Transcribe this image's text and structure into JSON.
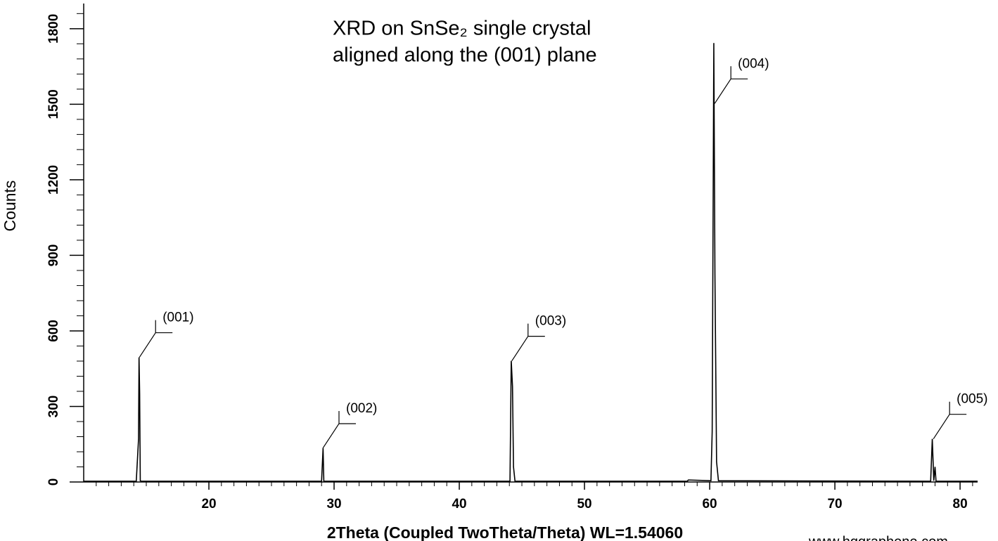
{
  "chart_data": {
    "type": "line",
    "title": [
      "XRD on SnSe₂ single crystal",
      "aligned along the (001) plane"
    ],
    "x_label": "2Theta (Coupled TwoTheta/Theta) WL=1.54060",
    "y_label": "Counts",
    "watermark": "www.hqgraphene.com",
    "color": "#000000",
    "xlim": [
      10,
      81.4
    ],
    "ylim": [
      0,
      1900
    ],
    "xticks": [
      20,
      30,
      40,
      50,
      60,
      70,
      80
    ],
    "yticks": [
      0,
      300,
      600,
      900,
      1200,
      1500,
      1800
    ],
    "xminorticks": [
      11,
      12,
      13,
      14,
      15,
      16,
      17,
      18,
      19,
      21,
      22,
      23,
      24,
      25,
      26,
      27,
      28,
      29,
      31,
      32,
      33,
      34,
      35,
      36,
      37,
      38,
      39,
      41,
      42,
      43,
      44,
      45,
      46,
      47,
      48,
      49,
      51,
      52,
      53,
      54,
      55,
      56,
      57,
      58,
      59,
      61,
      62,
      63,
      64,
      65,
      66,
      67,
      68,
      69,
      71,
      72,
      73,
      74,
      75,
      76,
      77,
      78,
      79,
      81
    ],
    "yminorticks": [
      60,
      120,
      180,
      240,
      360,
      420,
      480,
      540,
      660,
      720,
      780,
      840,
      960,
      1020,
      1080,
      1140,
      1260,
      1320,
      1380,
      1440,
      1560,
      1620,
      1680,
      1740,
      1860
    ],
    "x": [
      10,
      14.2,
      14.38,
      14.42,
      14.47,
      14.52,
      14.6,
      29.0,
      29.12,
      29.18,
      44.05,
      44.15,
      44.25,
      44.33,
      44.45,
      58.2,
      58.3,
      60.1,
      60.2,
      60.33,
      60.42,
      60.55,
      60.7,
      77.65,
      77.78,
      77.9,
      78.0,
      78.08,
      81.4
    ],
    "values": [
      3,
      3,
      170,
      495,
      350,
      5,
      3,
      3,
      134,
      3,
      3,
      481,
      380,
      60,
      3,
      3,
      8,
      5,
      200,
      1743,
      825,
      80,
      5,
      3,
      171,
      5,
      60,
      3,
      3
    ],
    "annotations": [
      {
        "label": "(001)",
        "x": 14.45,
        "y": 495
      },
      {
        "label": "(002)",
        "x": 29.1,
        "y": 134
      },
      {
        "label": "(003)",
        "x": 44.2,
        "y": 481
      },
      {
        "label": "(004)",
        "x": 60.4,
        "y": 1503
      },
      {
        "label": "(005)",
        "x": 77.87,
        "y": 171
      }
    ]
  }
}
